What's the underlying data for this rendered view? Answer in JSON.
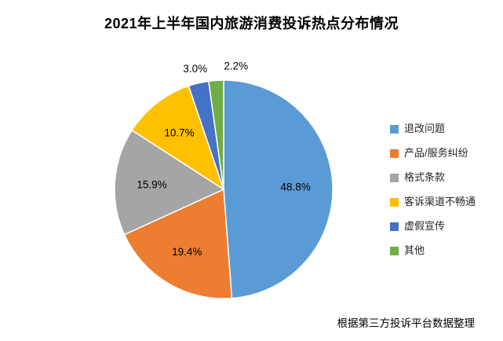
{
  "page": {
    "background": "#ffffff"
  },
  "chart_data": {
    "type": "pie",
    "title": "2021年上半年国内旅游消费投诉热点分布情况",
    "categories": [
      "退改问题",
      "产品/服务纠纷",
      "格式条款",
      "客诉渠道不畅通",
      "虚假宣传",
      "其他"
    ],
    "values": [
      48.8,
      19.4,
      15.9,
      10.7,
      3.0,
      2.2
    ],
    "data_labels": [
      "48.8%",
      "19.4%",
      "15.9%",
      "10.7%",
      "3.0%",
      "2.2%"
    ],
    "colors": [
      "#5B9BD5",
      "#ED7D31",
      "#A5A5A5",
      "#FFC000",
      "#4472C4",
      "#70AD47"
    ],
    "legend_position": "right",
    "start_angle_deg": 0,
    "direction": "clockwise",
    "slice_border_color": "#ffffff",
    "label_color": "#000000",
    "source_note": "根据第三方投诉平台数据整理"
  }
}
